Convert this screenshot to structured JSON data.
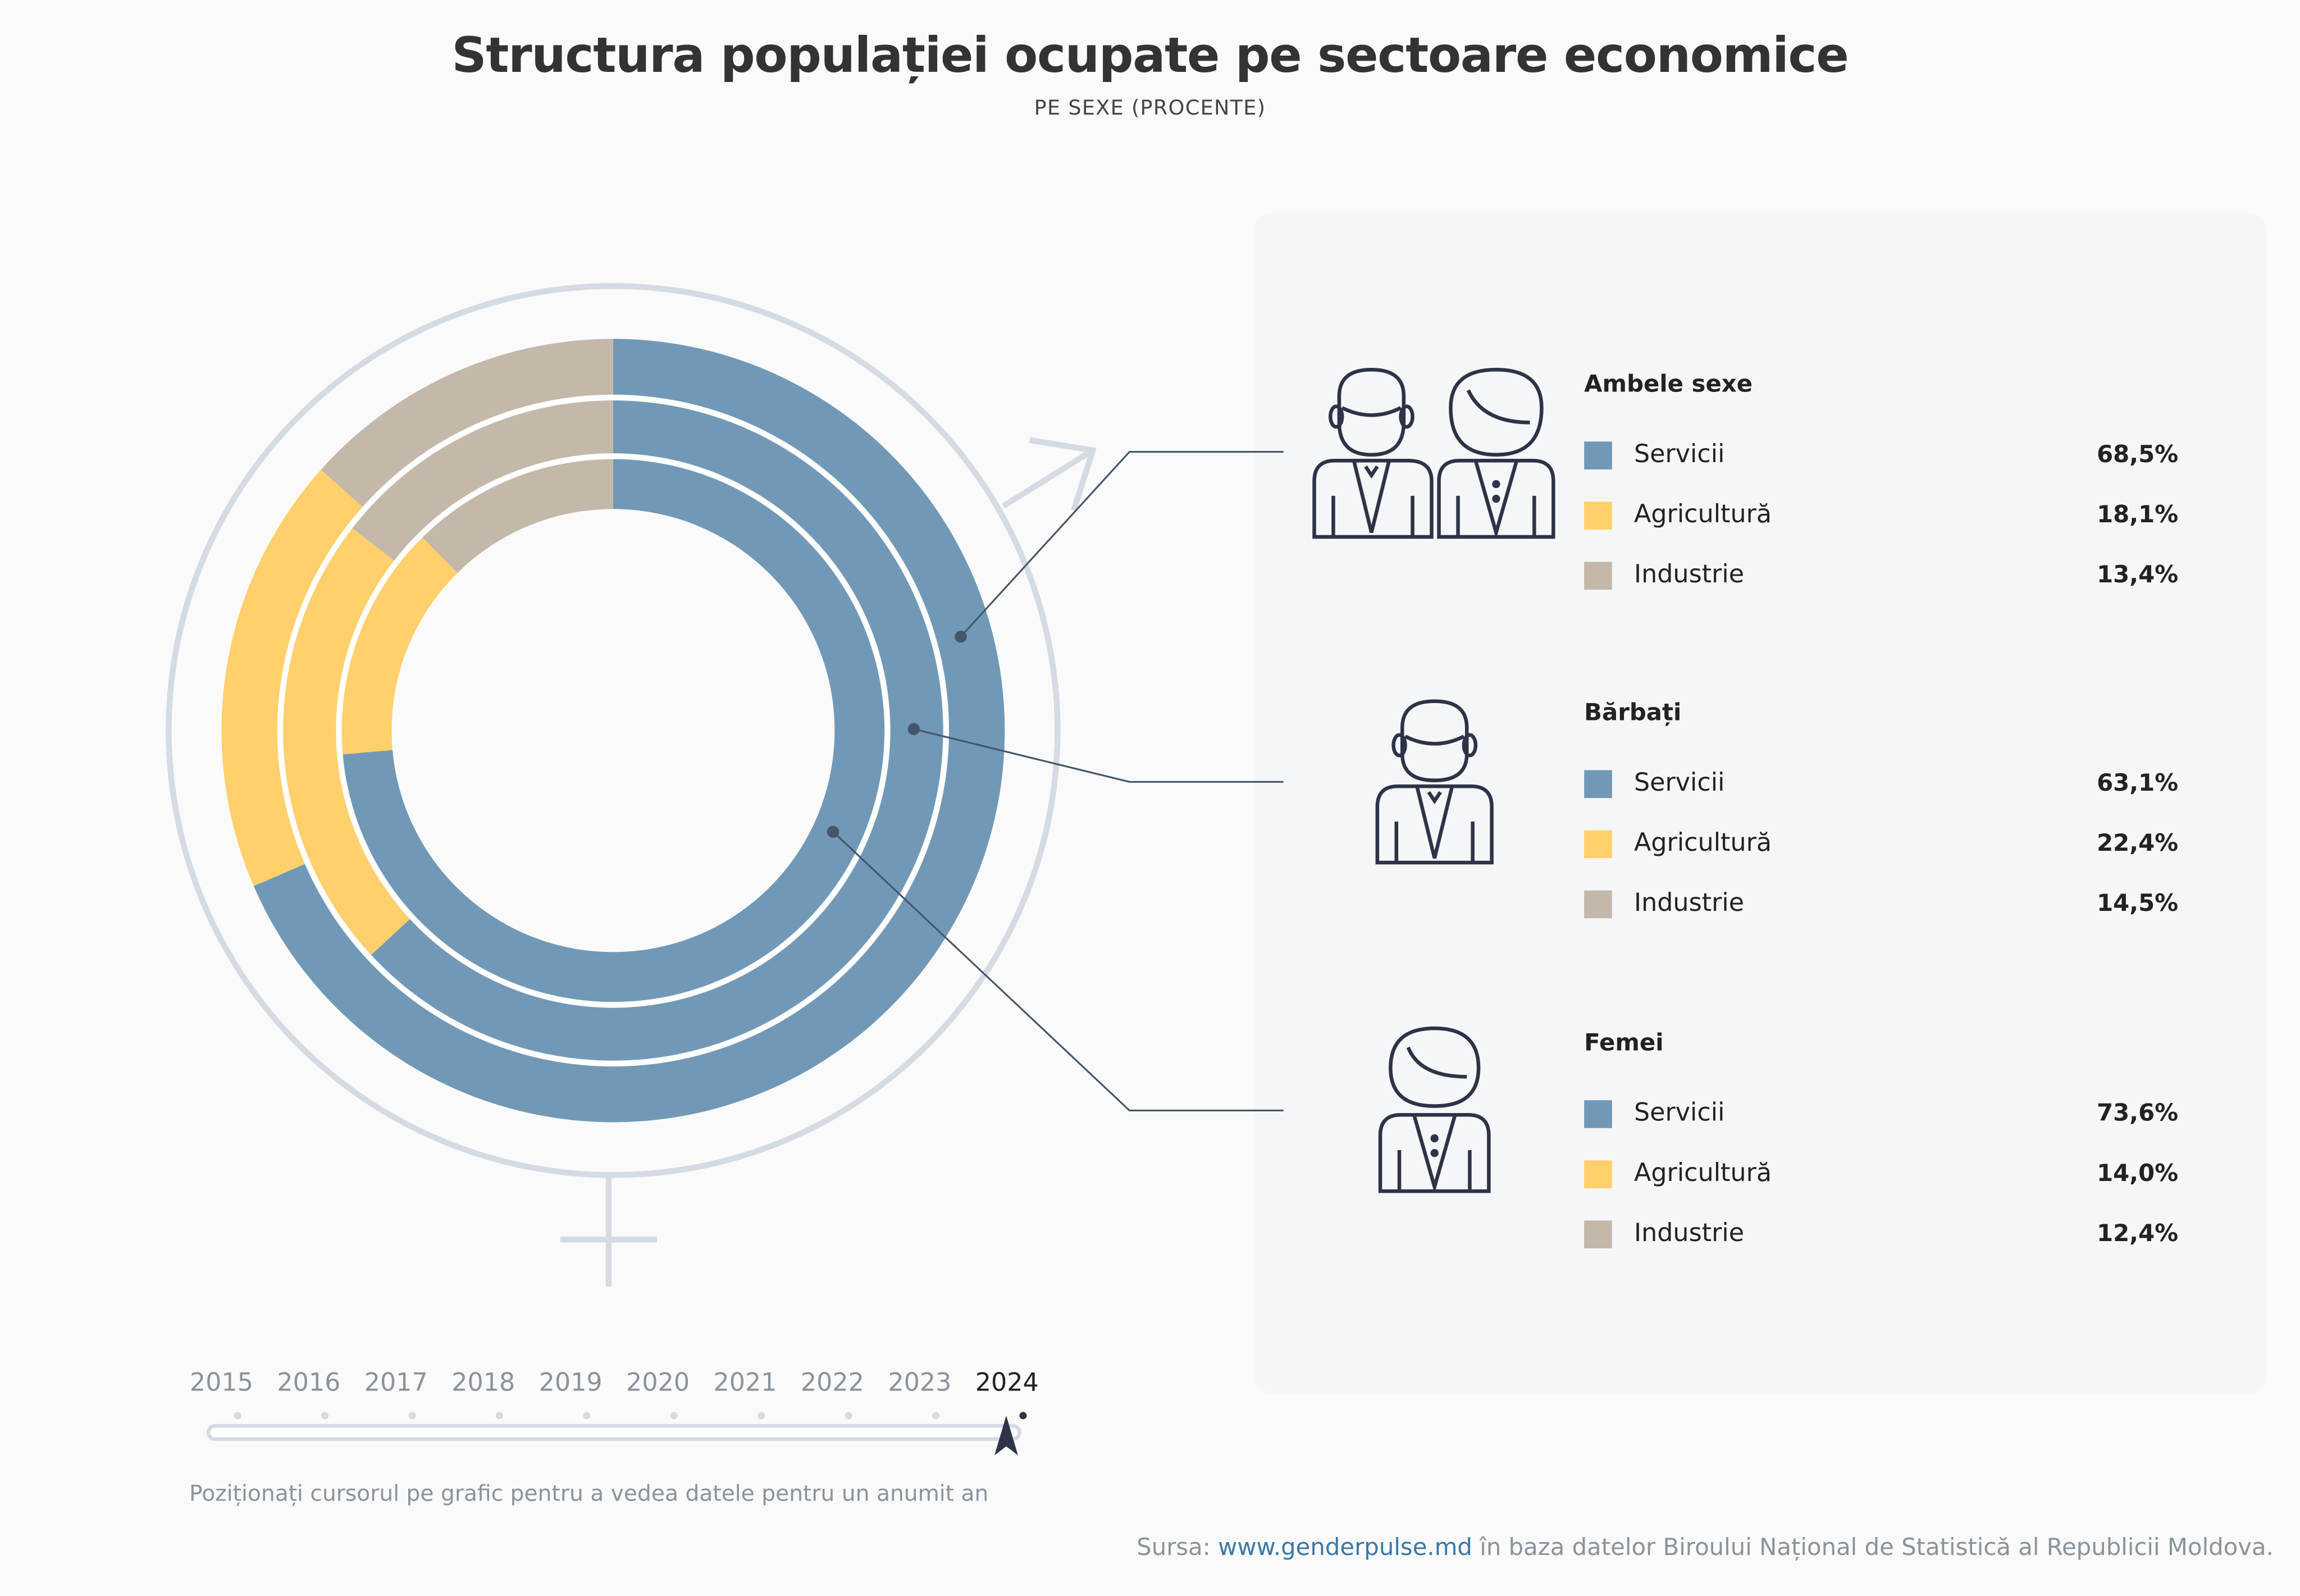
{
  "title": "Structura populației ocupate pe sectoare economice",
  "subtitle": "PE SEXE (PROCENTE)",
  "colors": {
    "Servicii": "#7199b7",
    "Agricultură": "#ffd06b",
    "Industrie": "#c4b8aa",
    "ink": "#2e3347",
    "symbol": "#d5dbe3"
  },
  "chart_data": {
    "type": "pie",
    "variant": "concentric-donut",
    "year": "2024",
    "categories": [
      "Servicii",
      "Agricultură",
      "Industrie"
    ],
    "unit": "%",
    "series": [
      {
        "name": "Ambele sexe",
        "ring": "outer",
        "values": [
          68.5,
          18.1,
          13.4
        ],
        "labels": [
          "68,5%",
          "18,1%",
          "13,4%"
        ]
      },
      {
        "name": "Bărbați",
        "ring": "middle",
        "values": [
          63.1,
          22.4,
          14.5
        ],
        "labels": [
          "63,1%",
          "22,4%",
          "14,5%"
        ]
      },
      {
        "name": "Femei",
        "ring": "inner",
        "values": [
          73.6,
          14.0,
          12.4
        ],
        "labels": [
          "73,6%",
          "14,0%",
          "12,4%"
        ]
      }
    ]
  },
  "timeline": {
    "years": [
      "2015",
      "2016",
      "2017",
      "2018",
      "2019",
      "2020",
      "2021",
      "2022",
      "2023",
      "2024"
    ],
    "selected": "2024",
    "hint": "Poziționați cursorul pe grafic pentru a vedea datele pentru un anumit an"
  },
  "source": {
    "prefix": "Sursa:",
    "link": "www.genderpulse.md",
    "suffix": "în baza datelor Biroului Național de Statistică al Republicii Moldova."
  }
}
